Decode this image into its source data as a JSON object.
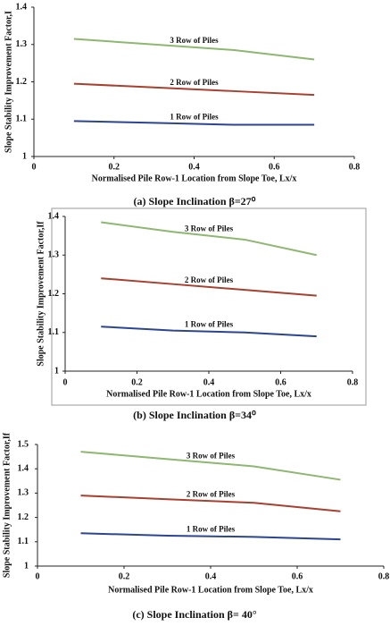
{
  "chart_data": [
    {
      "type": "line",
      "caption": "(a) Slope Inclination β=27⁰",
      "xlabel": "Normalised Pile Row-1 Location from Slope Toe, Lx/x",
      "ylabel": "Slope Stability Improvement Factor,I",
      "x": [
        0.1,
        0.3,
        0.5,
        0.7
      ],
      "series": [
        {
          "name": "3 Row of Piles",
          "color": "#8db870",
          "values": [
            1.315,
            1.3,
            1.285,
            1.26
          ]
        },
        {
          "name": "2 Row of Piles",
          "color": "#a8402f",
          "values": [
            1.195,
            1.185,
            1.175,
            1.165
          ]
        },
        {
          "name": "1 Row of Piles",
          "color": "#2b4592",
          "values": [
            1.095,
            1.09,
            1.085,
            1.085
          ]
        }
      ],
      "xlim": [
        0,
        0.8
      ],
      "xticks": [
        0,
        0.2,
        0.4,
        0.6,
        0.8
      ],
      "ylim": [
        1,
        1.4
      ],
      "yticks": [
        1,
        1.1,
        1.2,
        1.3,
        1.4
      ]
    },
    {
      "type": "line",
      "caption": "(b) Slope Inclination β=34⁰",
      "xlabel": "Normalised Pile Row-1 Location from Slope Toe, Lx/x",
      "ylabel": "Slope Stability Improvement Factor,If",
      "x": [
        0.1,
        0.3,
        0.5,
        0.7
      ],
      "series": [
        {
          "name": "3 Row of Piles",
          "color": "#8db870",
          "values": [
            1.385,
            1.36,
            1.34,
            1.3
          ]
        },
        {
          "name": "2 Row of Piles",
          "color": "#a8402f",
          "values": [
            1.24,
            1.225,
            1.21,
            1.195
          ]
        },
        {
          "name": "1 Row of Piles",
          "color": "#2b4592",
          "values": [
            1.115,
            1.105,
            1.1,
            1.09
          ]
        }
      ],
      "xlim": [
        0,
        0.8
      ],
      "xticks": [
        0,
        0.2,
        0.4,
        0.6,
        0.8
      ],
      "ylim": [
        1,
        1.4
      ],
      "yticks": [
        1,
        1.1,
        1.2,
        1.3,
        1.4
      ]
    },
    {
      "type": "line",
      "caption": "(c) Slope Inclination β= 40°",
      "xlabel": "Normalised Pile Row-1 Location from Slope Toe, Lx/x",
      "ylabel": "Slope Stability Improvement Factor,If",
      "x": [
        0.1,
        0.3,
        0.5,
        0.7
      ],
      "series": [
        {
          "name": "3 Row of Piles",
          "color": "#8db870",
          "values": [
            1.47,
            1.44,
            1.41,
            1.355
          ]
        },
        {
          "name": "2 Row of Piles",
          "color": "#a8402f",
          "values": [
            1.29,
            1.275,
            1.26,
            1.225
          ]
        },
        {
          "name": "1 Row of Piles",
          "color": "#2b4592",
          "values": [
            1.135,
            1.125,
            1.12,
            1.11
          ]
        }
      ],
      "xlim": [
        0,
        0.8
      ],
      "xticks": [
        0,
        0.2,
        0.4,
        0.6,
        0.8
      ],
      "ylim": [
        1,
        1.5
      ],
      "yticks": [
        1,
        1.1,
        1.2,
        1.3,
        1.4,
        1.5
      ]
    }
  ]
}
